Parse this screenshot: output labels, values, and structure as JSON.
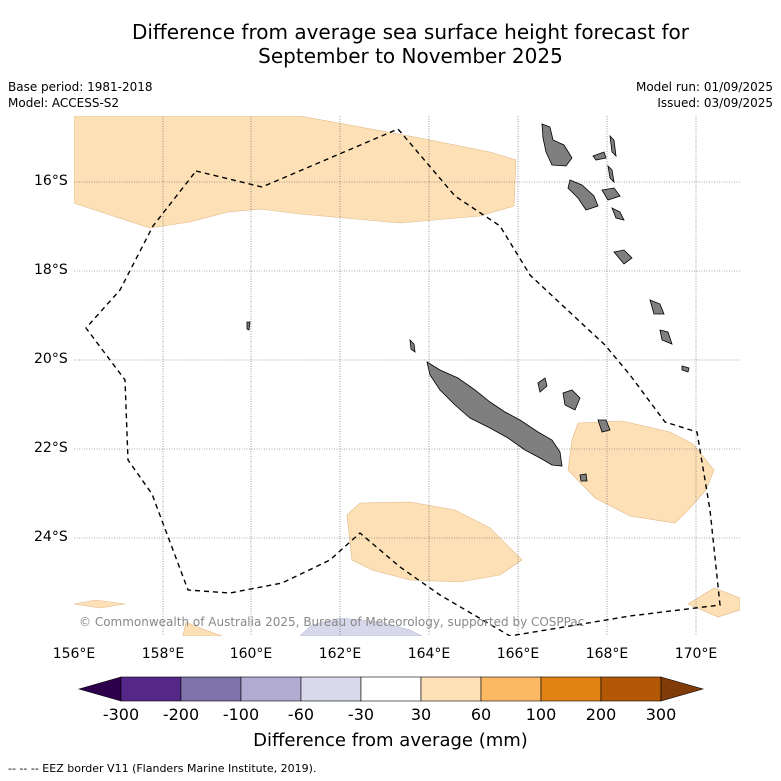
{
  "title_line1": "Difference from average sea surface height forecast for",
  "title_line2": "September to November 2025",
  "meta": {
    "base_period": "Base period: 1981-2018",
    "model": "Model: ACCESS-S2",
    "model_run": "Model run: 01/09/2025",
    "issued": "Issued: 03/09/2025"
  },
  "map": {
    "copyright": "© Commonwealth of Australia 2025, Bureau of Meteorology, supported by COSPPac",
    "lat_labels": [
      "16°S",
      "18°S",
      "20°S",
      "22°S",
      "24°S"
    ],
    "lon_labels": [
      "156°E",
      "158°E",
      "160°E",
      "162°E",
      "164°E",
      "166°E",
      "168°E",
      "170°E"
    ],
    "colors": {
      "land": "#7f7f7f",
      "anomaly_30_60": "#fde0b6",
      "anomaly_neg30_neg60": "#d7d8eb"
    }
  },
  "colorbar": {
    "title": "Difference from average (mm)",
    "ticks": [
      "-300",
      "-200",
      "-100",
      "-60",
      "-30",
      "30",
      "60",
      "100",
      "200",
      "300"
    ],
    "colors": [
      "#2d004b",
      "#542788",
      "#8073ac",
      "#b2abd2",
      "#d8daeb",
      "#ffffff",
      "#fee0b6",
      "#fdb863",
      "#e08214",
      "#b35806",
      "#7f3b08"
    ]
  },
  "footer": "-- -- -- EEZ border V11 (Flanders Marine Institute, 2019)."
}
